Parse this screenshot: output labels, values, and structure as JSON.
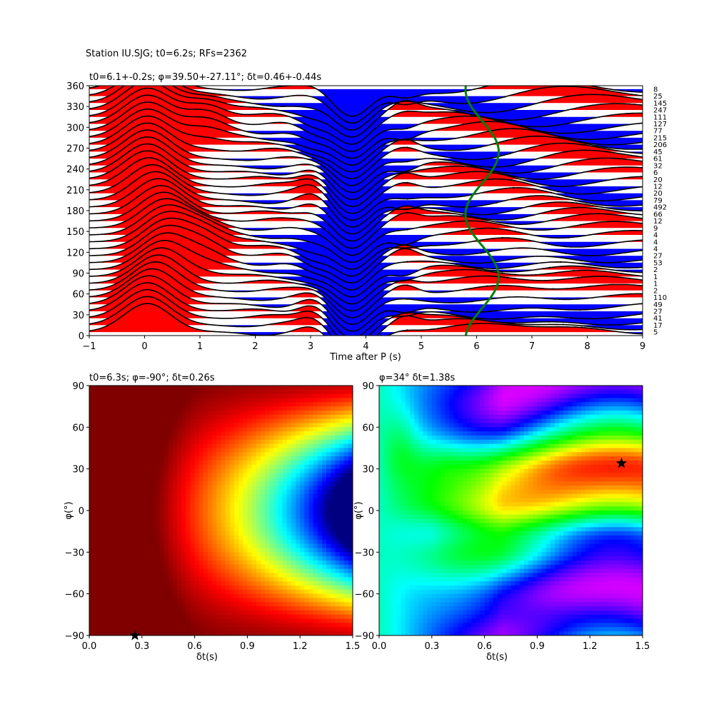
{
  "suptitle": "Station IU.SJG; t0=6.2s; RFs=2362",
  "colors": {
    "positive_fill": "#ff0000",
    "negative_fill": "#0000ff",
    "trace_line": "#000000",
    "fit_curve": "#008000",
    "star": "#000000"
  },
  "chart_data": [
    {
      "type": "line",
      "panel": "receiver-function-stack",
      "title": "t0=6.1+-0.2s; φ=39.50+-27.11°; δt=0.46+-0.44s",
      "xlabel": "Time after P (s)",
      "ylabel": "",
      "xlim": [
        -1,
        9
      ],
      "ylim": [
        0,
        360
      ],
      "xticks": [
        "−1",
        "0",
        "1",
        "2",
        "3",
        "4",
        "5",
        "6",
        "7",
        "8",
        "9"
      ],
      "yticks": [
        "0",
        "30",
        "60",
        "90",
        "120",
        "150",
        "180",
        "210",
        "240",
        "270",
        "300",
        "330",
        "360"
      ],
      "back_azimuths": [
        5,
        15,
        25,
        35,
        45,
        55,
        65,
        75,
        85,
        95,
        105,
        115,
        125,
        135,
        145,
        155,
        165,
        175,
        185,
        195,
        205,
        215,
        225,
        235,
        245,
        255,
        265,
        275,
        285,
        295,
        305,
        315,
        325,
        335,
        345,
        355
      ],
      "counts": [
        "5",
        "17",
        "41",
        "27",
        "49",
        "110",
        "2",
        "1",
        "1",
        "2",
        "53",
        "27",
        "4",
        "4",
        "4",
        "9",
        "12",
        "66",
        "492",
        "79",
        "20",
        "12",
        "20",
        "6",
        "32",
        "61",
        "45",
        "206",
        "215",
        "77",
        "127",
        "111",
        "247",
        "145",
        "25",
        "8"
      ],
      "fit_curve": {
        "t0": 6.1,
        "amplitude": 0.3,
        "phase_deg": 39.5
      }
    },
    {
      "type": "heatmap",
      "panel": "grid-search-left",
      "title": "t0=6.3s; φ=-90°; δt=0.26s",
      "xlabel": "δt(s)",
      "ylabel": "φ(°)",
      "xlim": [
        0.0,
        1.5
      ],
      "ylim": [
        -90,
        90
      ],
      "xticks": [
        "0.0",
        "0.3",
        "0.6",
        "0.9",
        "1.2",
        "1.5"
      ],
      "yticks": [
        "−90",
        "−60",
        "−30",
        "0",
        "30",
        "60",
        "90"
      ],
      "colormap": "jet",
      "best": {
        "dt": 0.26,
        "phi": -90
      }
    },
    {
      "type": "heatmap",
      "panel": "grid-search-right",
      "title": "φ=34° δt=1.38s",
      "xlabel": "δt(s)",
      "ylabel": "φ(°)",
      "xlim": [
        0.0,
        1.5
      ],
      "ylim": [
        -90,
        90
      ],
      "xticks": [
        "0.0",
        "0.3",
        "0.6",
        "0.9",
        "1.2",
        "1.5"
      ],
      "yticks": [
        "−90",
        "−60",
        "−30",
        "0",
        "30",
        "60",
        "90"
      ],
      "colormap": "gist_rainbow",
      "best": {
        "dt": 1.38,
        "phi": 34
      }
    }
  ]
}
